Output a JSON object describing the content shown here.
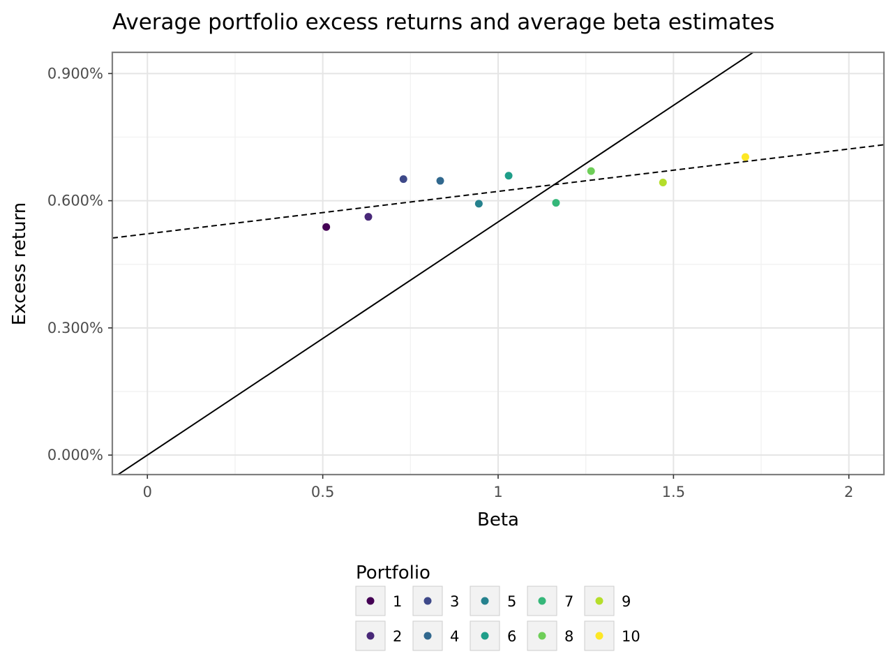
{
  "chart_data": {
    "type": "scatter",
    "title": "Average portfolio excess returns and average beta estimates",
    "xlabel": "Beta",
    "ylabel": "Excess return",
    "xlim": [
      -0.1,
      2.1
    ],
    "ylim": [
      -0.046,
      0.95
    ],
    "x_ticks": [
      0,
      0.5,
      1,
      1.5,
      2
    ],
    "x_tick_labels": [
      "0",
      "0.5",
      "1",
      "1.5",
      "2"
    ],
    "y_ticks": [
      0,
      0.3,
      0.6,
      0.9
    ],
    "y_tick_labels": [
      "0.000%",
      "0.300%",
      "0.600%",
      "0.900%"
    ],
    "grid": true,
    "legend": {
      "title": "Portfolio",
      "position": "bottom"
    },
    "series": [
      {
        "name": "1",
        "color": "#440154",
        "x": 0.51,
        "y": 0.538
      },
      {
        "name": "2",
        "color": "#482878",
        "x": 0.63,
        "y": 0.562
      },
      {
        "name": "3",
        "color": "#3E4989",
        "x": 0.73,
        "y": 0.651
      },
      {
        "name": "4",
        "color": "#31688E",
        "x": 0.835,
        "y": 0.647
      },
      {
        "name": "5",
        "color": "#26828E",
        "x": 0.945,
        "y": 0.593
      },
      {
        "name": "6",
        "color": "#1F9E89",
        "x": 1.03,
        "y": 0.659
      },
      {
        "name": "7",
        "color": "#35B779",
        "x": 1.165,
        "y": 0.595
      },
      {
        "name": "8",
        "color": "#6ECE58",
        "x": 1.265,
        "y": 0.67
      },
      {
        "name": "9",
        "color": "#B5DE2B",
        "x": 1.47,
        "y": 0.643
      },
      {
        "name": "10",
        "color": "#FDE725",
        "x": 1.705,
        "y": 0.703
      }
    ],
    "lines": [
      {
        "style": "solid",
        "intercept": 0,
        "slope": 0.55
      },
      {
        "style": "dashed",
        "intercept": 0.522,
        "slope": 0.1
      }
    ]
  }
}
